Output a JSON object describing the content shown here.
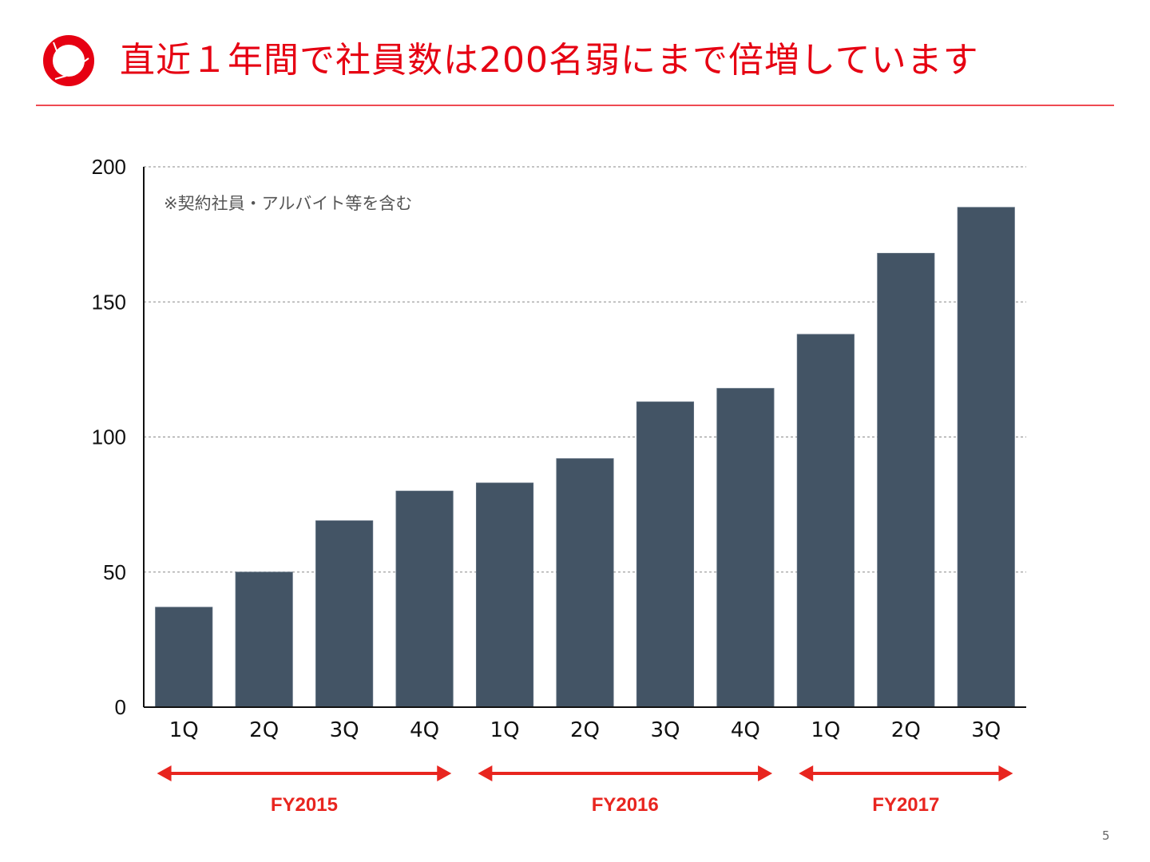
{
  "slide": {
    "title": "直近１年間で社員数は200名弱にまで倍増しています",
    "page_number": "5",
    "accent_color": "#e60012",
    "logo_icon": "red-ring-logo"
  },
  "chart_data": {
    "type": "bar",
    "title": "",
    "xlabel": "",
    "ylabel": "",
    "note": "※契約社員・アルバイト等を含む",
    "categories": [
      "1Q",
      "2Q",
      "3Q",
      "4Q",
      "1Q",
      "2Q",
      "3Q",
      "4Q",
      "1Q",
      "2Q",
      "3Q"
    ],
    "values": [
      37,
      50,
      69,
      80,
      83,
      92,
      113,
      118,
      138,
      168,
      185
    ],
    "ylim": [
      0,
      200
    ],
    "yticks": [
      0,
      50,
      100,
      150,
      200
    ],
    "grid": true,
    "bar_color": "#435465",
    "groups": [
      {
        "label": "FY2015",
        "start": 0,
        "end": 3
      },
      {
        "label": "FY2016",
        "start": 4,
        "end": 7
      },
      {
        "label": "FY2017",
        "start": 8,
        "end": 10
      }
    ],
    "group_color": "#e8251f"
  }
}
